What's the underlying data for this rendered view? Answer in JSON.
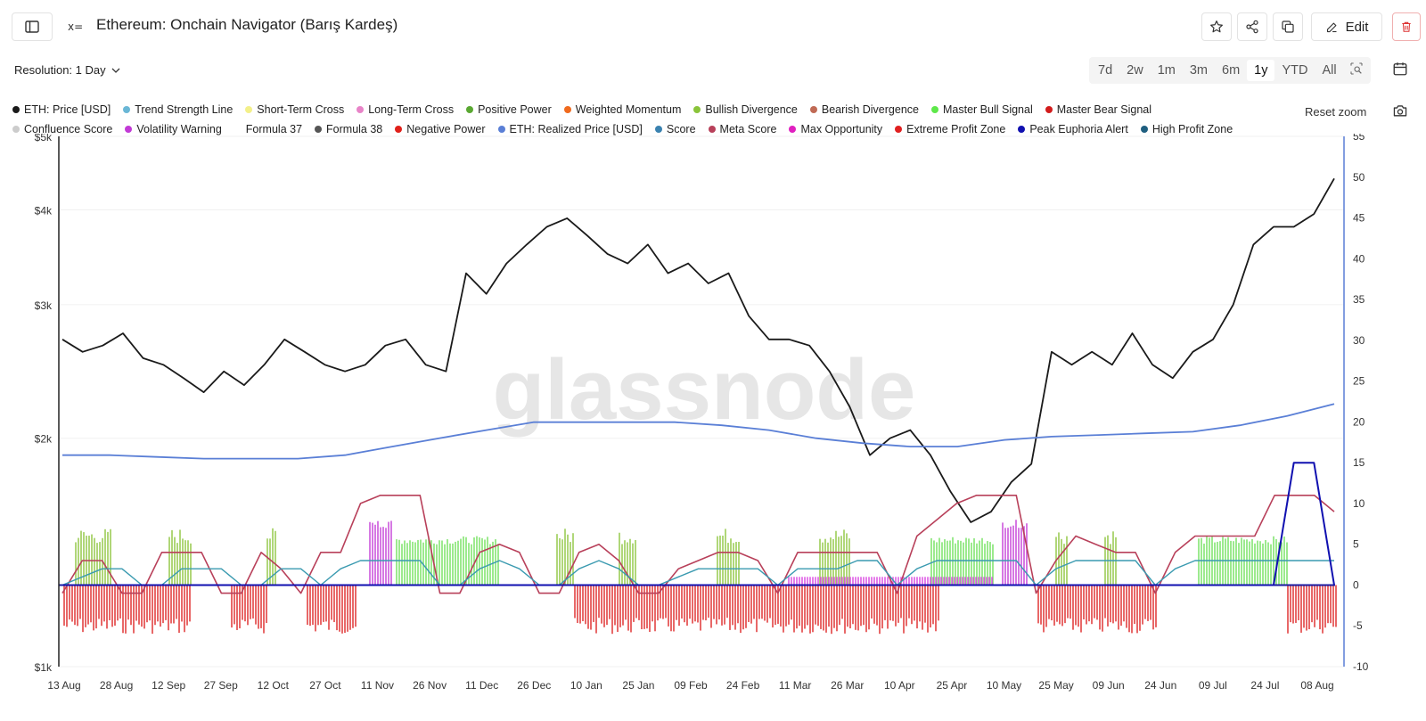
{
  "header": {
    "title": "Ethereum: Onchain Navigator (Barış Kardeş)",
    "edit_label": "Edit"
  },
  "toolbar": {
    "resolution_label": "Resolution: 1 Day",
    "ranges": [
      "7d",
      "2w",
      "1m",
      "3m",
      "6m",
      "1y",
      "YTD",
      "All"
    ],
    "active_range": "1y",
    "reset_zoom": "Reset zoom"
  },
  "legend": {
    "row1": [
      {
        "name": "ETH: Price [USD]",
        "color": "#1a1a1a"
      },
      {
        "name": "Trend Strength Line",
        "color": "#6ab7d6"
      },
      {
        "name": "Short-Term Cross",
        "color": "#f3f08a"
      },
      {
        "name": "Long-Term Cross",
        "color": "#e884c8"
      },
      {
        "name": "Positive Power",
        "color": "#5aa832"
      },
      {
        "name": "Weighted Momentum",
        "color": "#f06a1e"
      },
      {
        "name": "Bullish Divergence",
        "color": "#8ac43a"
      },
      {
        "name": "Bearish Divergence",
        "color": "#c06a55"
      },
      {
        "name": "Master Bull Signal",
        "color": "#5ee84a"
      },
      {
        "name": "Master Bear Signal",
        "color": "#d21c1c"
      }
    ],
    "row2": [
      {
        "name": "Confluence Score",
        "color": "#cccccc"
      },
      {
        "name": "Volatility Warning",
        "color": "#c23ad6"
      },
      {
        "name": "Formula 37",
        "color": "#ffffff"
      },
      {
        "name": "Formula 38",
        "color": "#555555"
      },
      {
        "name": "Negative Power",
        "color": "#e0201a"
      },
      {
        "name": "ETH: Realized Price [USD]",
        "color": "#5a7fd6"
      },
      {
        "name": "Score",
        "color": "#3a82b0"
      },
      {
        "name": "Meta Score",
        "color": "#b8405a"
      },
      {
        "name": "Max Opportunity",
        "color": "#e020c0"
      },
      {
        "name": "Extreme Profit Zone",
        "color": "#e02020"
      },
      {
        "name": "Peak Euphoria Alert",
        "color": "#1010b0"
      },
      {
        "name": "High Profit Zone",
        "color": "#1f5f80"
      }
    ]
  },
  "watermark": "glassnode",
  "chart_data": {
    "type": "line",
    "x_ticks": [
      "13 Aug",
      "28 Aug",
      "12 Sep",
      "27 Sep",
      "12 Oct",
      "27 Oct",
      "11 Nov",
      "26 Nov",
      "11 Dec",
      "26 Dec",
      "10 Jan",
      "25 Jan",
      "09 Feb",
      "24 Feb",
      "11 Mar",
      "26 Mar",
      "10 Apr",
      "25 Apr",
      "10 May",
      "25 May",
      "09 Jun",
      "24 Jun",
      "09 Jul",
      "24 Jul",
      "08 Aug"
    ],
    "y_left_ticks": [
      "$5k",
      "$4k",
      "$3k",
      "$2k",
      "$1k"
    ],
    "y_left_scale": "log",
    "y_left_range": [
      1000,
      5000
    ],
    "y_right_ticks": [
      "55",
      "50",
      "45",
      "40",
      "35",
      "30",
      "25",
      "20",
      "15",
      "10",
      "5",
      "0",
      "-5",
      "-10"
    ],
    "y_right_range": [
      -10,
      55
    ],
    "series": [
      {
        "name": "ETH: Price [USD]",
        "axis": "left",
        "values": [
          2700,
          2600,
          2650,
          2750,
          2550,
          2500,
          2400,
          2300,
          2450,
          2350,
          2500,
          2700,
          2600,
          2500,
          2450,
          2500,
          2650,
          2700,
          2500,
          2450,
          3300,
          3100,
          3400,
          3600,
          3800,
          3900,
          3700,
          3500,
          3400,
          3600,
          3300,
          3400,
          3200,
          3300,
          2900,
          2700,
          2700,
          2650,
          2450,
          2200,
          1900,
          2000,
          2050,
          1900,
          1700,
          1550,
          1600,
          1750,
          1850,
          2600,
          2500,
          2600,
          2500,
          2750,
          2500,
          2400,
          2600,
          2700,
          3000,
          3600,
          3800,
          3800,
          3950,
          4400
        ]
      },
      {
        "name": "ETH: Realized Price [USD]",
        "axis": "left",
        "values": [
          1900,
          1900,
          1890,
          1880,
          1880,
          1880,
          1900,
          1950,
          2000,
          2050,
          2100,
          2100,
          2100,
          2100,
          2080,
          2050,
          2000,
          1970,
          1950,
          1950,
          1990,
          2010,
          2020,
          2030,
          2040,
          2080,
          2140,
          2220
        ]
      },
      {
        "name": "Meta Score",
        "axis": "right",
        "values": [
          -1,
          3,
          3,
          -1,
          -1,
          4,
          4,
          4,
          -1,
          -1,
          4,
          2,
          -1,
          4,
          4,
          10,
          11,
          11,
          11,
          -1,
          -1,
          4,
          5,
          4,
          -1,
          -1,
          4,
          5,
          3,
          -1,
          -1,
          2,
          3,
          4,
          4,
          3,
          -1,
          4,
          4,
          4,
          4,
          4,
          -1,
          6,
          8,
          10,
          11,
          11,
          11,
          -1,
          3,
          6,
          5,
          4,
          4,
          -1,
          4,
          6,
          6,
          6,
          6,
          11,
          11,
          11,
          9
        ]
      },
      {
        "name": "Score",
        "axis": "right",
        "values": [
          0,
          1,
          2,
          2,
          0,
          0,
          2,
          2,
          2,
          0,
          0,
          2,
          2,
          0,
          2,
          3,
          3,
          3,
          3,
          0,
          0,
          2,
          3,
          2,
          0,
          0,
          2,
          3,
          2,
          0,
          0,
          1,
          2,
          2,
          2,
          2,
          0,
          2,
          2,
          2,
          3,
          3,
          0,
          2,
          3,
          3,
          3,
          3,
          3,
          0,
          2,
          3,
          3,
          3,
          3,
          0,
          2,
          3,
          3,
          3,
          3,
          3,
          3,
          3,
          3
        ]
      },
      {
        "name": "Peak Euphoria Alert",
        "axis": "right",
        "values": [
          0,
          0,
          0,
          0,
          0,
          0,
          0,
          0,
          0,
          0,
          0,
          0,
          0,
          0,
          0,
          0,
          0,
          0,
          0,
          0,
          0,
          0,
          0,
          0,
          0,
          0,
          0,
          0,
          0,
          0,
          0,
          0,
          0,
          0,
          0,
          0,
          0,
          0,
          0,
          0,
          0,
          0,
          0,
          0,
          0,
          0,
          0,
          0,
          0,
          0,
          0,
          0,
          0,
          0,
          0,
          0,
          0,
          0,
          0,
          0,
          0,
          15,
          15,
          0
        ]
      }
    ]
  }
}
